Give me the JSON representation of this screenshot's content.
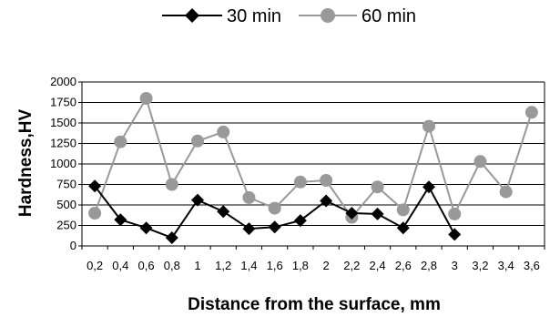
{
  "chart_data": {
    "type": "line",
    "title": "",
    "xlabel": "Distance from the surface, mm",
    "ylabel": "Hardness,HV",
    "categories": [
      "0,2",
      "0,4",
      "0,6",
      "0,8",
      "1",
      "1,2",
      "1,4",
      "1,6",
      "1,8",
      "2",
      "2,2",
      "2,4",
      "2,6",
      "2,8",
      "3",
      "3,2",
      "3,4",
      "3,6"
    ],
    "yticks": [
      "0",
      "250",
      "500",
      "750",
      "1000",
      "1250",
      "1500",
      "1750",
      "2000"
    ],
    "ylim": [
      0,
      2000
    ],
    "grid": "horizontal",
    "legend_position": "top",
    "series": [
      {
        "name": "30 min",
        "color": "#000000",
        "marker": "diamond",
        "values": [
          730,
          320,
          220,
          100,
          560,
          420,
          210,
          230,
          310,
          550,
          400,
          390,
          220,
          720,
          140,
          null,
          null,
          null
        ]
      },
      {
        "name": "60 min",
        "color": "#999999",
        "marker": "circle",
        "values": [
          400,
          1270,
          1800,
          750,
          1280,
          1390,
          590,
          460,
          780,
          800,
          350,
          720,
          440,
          1460,
          390,
          1030,
          660,
          1630
        ]
      }
    ]
  }
}
